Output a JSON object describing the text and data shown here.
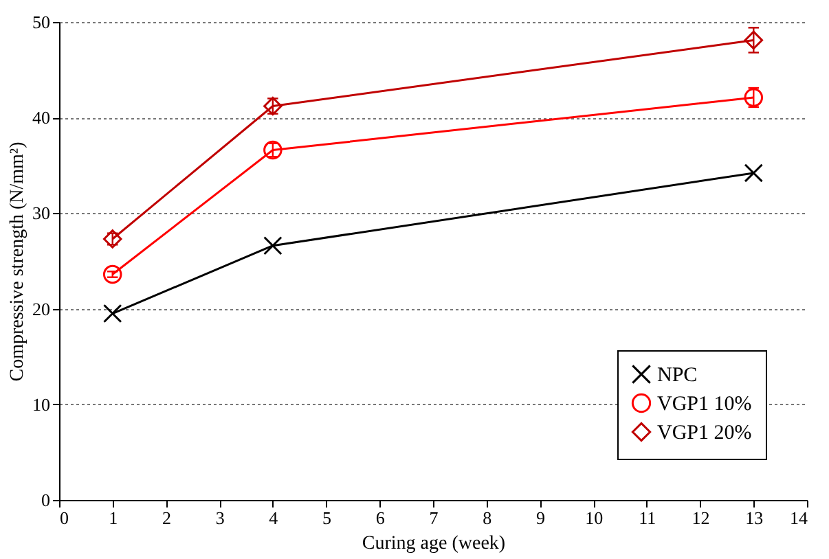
{
  "chart_data": {
    "type": "line",
    "xlabel": "Curing age (week)",
    "ylabel": "Compressive strength (N/mm²)",
    "xlim": [
      0,
      14
    ],
    "xticks": [
      0,
      1,
      2,
      3,
      4,
      5,
      6,
      7,
      8,
      9,
      10,
      11,
      12,
      13,
      14
    ],
    "ylim": [
      0,
      50
    ],
    "yticks": [
      0,
      10,
      20,
      30,
      40,
      50
    ],
    "grid": "y",
    "legend": "bottom right",
    "x": [
      1,
      4,
      13
    ],
    "series": [
      {
        "name": "NPC",
        "color": "#000000",
        "marker": "cross",
        "values": [
          19.5,
          26.6,
          34.2
        ]
      },
      {
        "name": "VGP1 10%",
        "color": "#ff0000",
        "marker": "circle",
        "values": [
          23.6,
          36.6,
          42.1
        ],
        "errors": [
          0.3,
          0.7,
          1.0
        ]
      },
      {
        "name": "VGP1 20%",
        "color": "#c00000",
        "marker": "diamond",
        "values": [
          27.3,
          41.2,
          48.1
        ],
        "errors": [
          0.6,
          0.8,
          1.3
        ]
      }
    ]
  }
}
